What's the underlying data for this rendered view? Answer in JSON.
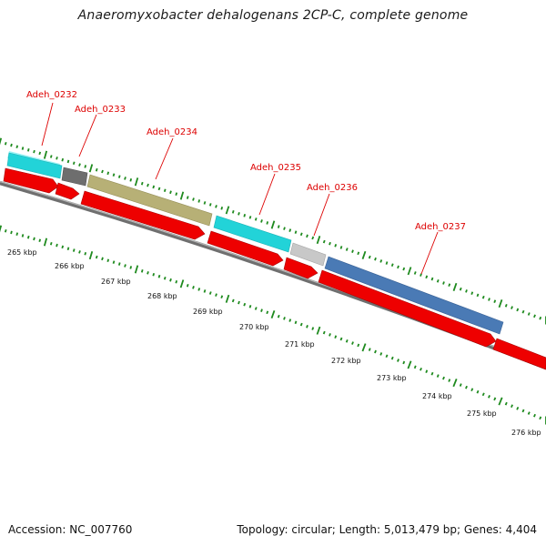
{
  "title": "Anaeromyxobacter dehalogenans 2CP-C, complete genome",
  "footer": {
    "accession": "Accession: NC_007760",
    "summary": "Topology: circular; Length: 5,013,479 bp; Genes: 4,404"
  },
  "colors": {
    "cds_strand": "#ee0000",
    "backbone": "#888888",
    "tick_marks": "#1e8a1e",
    "gene_labels": "#dd0000"
  },
  "genes": [
    {
      "name": "Adeh_0232",
      "feature_color": "#22d3d8"
    },
    {
      "name": "Adeh_0233",
      "feature_color": "#6e6e6e"
    },
    {
      "name": "Adeh_0234",
      "feature_color": "#b7b076"
    },
    {
      "name": "Adeh_0235",
      "feature_color": "#22d3d8"
    },
    {
      "name": "Adeh_0236",
      "feature_color": "#c8c8c8"
    },
    {
      "name": "Adeh_0237",
      "feature_color": "#4a7ab5"
    }
  ],
  "kbp_labels": [
    "265 kbp",
    "266 kbp",
    "267 kbp",
    "268 kbp",
    "269 kbp",
    "270 kbp",
    "271 kbp",
    "272 kbp",
    "273 kbp",
    "274 kbp",
    "275 kbp",
    "276 kbp"
  ]
}
